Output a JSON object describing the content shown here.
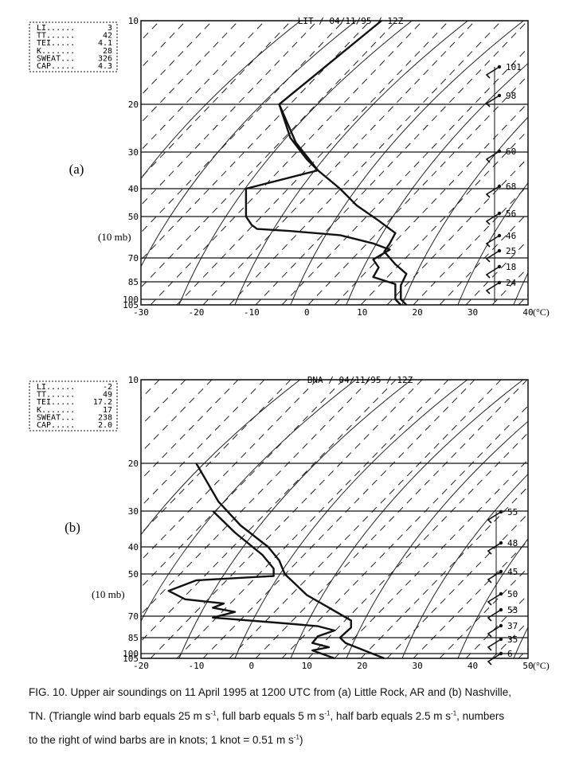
{
  "figure_caption": {
    "line1": "FIG. 10. Upper air soundings on 11 April 1995 at 1200 UTC from (a) Little Rock, AR and (b) Nashville,",
    "line2a": "TN. (Triangle wind barb equals 25 m s",
    "line2b": ", full barb equals 5 m s",
    "line2c": ", half barb equals 2.5 m s",
    "line2d": ", numbers",
    "line3a": "to the right of wind barbs are in knots; 1 knot = 0.51 m s",
    "line3b": ")",
    "exp": "-1"
  },
  "chart_data": [
    {
      "type": "line",
      "panel_label": "(a)",
      "side_label": "(10 mb)",
      "header": "LIT / 04/11/95 / 12Z",
      "xlabel": "(°C)",
      "xlim": [
        -30,
        40
      ],
      "x_ticks": [
        "-30",
        "-20",
        "-10",
        "0",
        "10",
        "20",
        "30",
        "40"
      ],
      "pressure_levels": [
        10,
        20,
        30,
        40,
        50,
        70,
        85,
        100,
        105
      ],
      "pressure_tick_labels": [
        "10",
        "20",
        "30",
        "40",
        "50",
        "70",
        "85",
        "100",
        "105"
      ],
      "indices": [
        {
          "name": "LI......",
          "value": "3"
        },
        {
          "name": "TT......",
          "value": "42"
        },
        {
          "name": "TEI.....",
          "value": "4.1"
        },
        {
          "name": "K.......",
          "value": "28"
        },
        {
          "name": "SWEAT...",
          "value": "326"
        },
        {
          "name": "CAP.....",
          "value": "4.3"
        }
      ],
      "series": [
        {
          "key": "temperature",
          "points": [
            [
              13.5,
              10
            ],
            [
              -5,
              20
            ],
            [
              -2,
              28
            ],
            [
              2,
              35
            ],
            [
              6,
              40
            ],
            [
              9,
              46
            ],
            [
              13,
              52
            ],
            [
              16,
              58
            ],
            [
              15,
              63
            ],
            [
              14,
              67
            ],
            [
              16,
              74
            ],
            [
              18,
              80
            ],
            [
              17,
              88
            ],
            [
              17,
              100
            ],
            [
              18,
              105
            ]
          ]
        },
        {
          "key": "dewpoint",
          "points": [
            [
              -5,
              20
            ],
            [
              -3,
              27
            ],
            [
              0,
              32
            ],
            [
              2,
              35
            ],
            [
              -11,
              40
            ],
            [
              -11,
              50
            ],
            [
              -10,
              54
            ],
            [
              -9,
              56
            ],
            [
              -3,
              57
            ],
            [
              6,
              59
            ],
            [
              9,
              61
            ],
            [
              12,
              63
            ],
            [
              15,
              66
            ],
            [
              12,
              71
            ],
            [
              13,
              76
            ],
            [
              12,
              82
            ],
            [
              16,
              87
            ],
            [
              16,
              100
            ],
            [
              17,
              105
            ]
          ]
        }
      ],
      "wind_speeds_kt": [
        "101",
        "98",
        "60",
        "68",
        "56",
        "46",
        "25",
        "18",
        "24"
      ]
    },
    {
      "type": "line",
      "panel_label": "(b)",
      "side_label": "(10 mb)",
      "header": "BNA / 04/11/95 / 12Z",
      "xlabel": "(°C)",
      "xlim": [
        -20,
        50
      ],
      "x_ticks": [
        "-20",
        "-10",
        "0",
        "10",
        "20",
        "30",
        "40",
        "50"
      ],
      "pressure_levels": [
        10,
        20,
        30,
        40,
        50,
        70,
        85,
        100,
        105
      ],
      "pressure_tick_labels": [
        "10",
        "20",
        "30",
        "40",
        "50",
        "70",
        "85",
        "100",
        "105"
      ],
      "indices": [
        {
          "name": "LI......",
          "value": "-2"
        },
        {
          "name": "TT......",
          "value": "49"
        },
        {
          "name": "TEI.....",
          "value": "17.2"
        },
        {
          "name": "K.......",
          "value": "17"
        },
        {
          "name": "SWEAT...",
          "value": "238"
        },
        {
          "name": "CAP.....",
          "value": "2.0"
        }
      ],
      "series": [
        {
          "key": "temperature",
          "points": [
            [
              -10,
              20
            ],
            [
              -6,
              28
            ],
            [
              -2,
              34
            ],
            [
              3,
              40
            ],
            [
              5,
              45
            ],
            [
              6,
              50
            ],
            [
              8,
              55
            ],
            [
              10,
              60
            ],
            [
              14,
              66
            ],
            [
              18,
              73
            ],
            [
              18,
              78
            ],
            [
              16,
              85
            ],
            [
              17,
              90
            ],
            [
              24,
              105
            ]
          ]
        },
        {
          "key": "dewpoint",
          "points": [
            [
              -7,
              30
            ],
            [
              -3,
              36
            ],
            [
              2,
              43
            ],
            [
              4,
              48
            ],
            [
              4,
              51
            ],
            [
              -10,
              53
            ],
            [
              -15,
              58
            ],
            [
              -12,
              62
            ],
            [
              -5,
              64
            ],
            [
              -7,
              66
            ],
            [
              -3,
              68
            ],
            [
              -7,
              71
            ],
            [
              6,
              75
            ],
            [
              12,
              77
            ],
            [
              15,
              80
            ],
            [
              12,
              84
            ],
            [
              11,
              90
            ],
            [
              14,
              94
            ],
            [
              11,
              97
            ],
            [
              15,
              105
            ]
          ]
        }
      ],
      "wind_speeds_kt": [
        "55",
        "48",
        "45",
        "50",
        "53",
        "37",
        "35",
        "6"
      ]
    }
  ]
}
